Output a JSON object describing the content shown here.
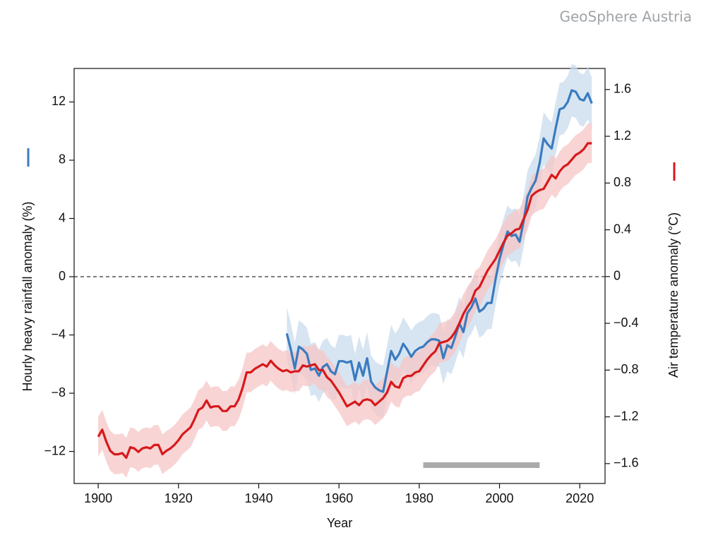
{
  "chart_data": {
    "type": "line",
    "source": "GeoSphere Austria",
    "xlabel": "Year",
    "ylabel": "Hourly heavy rainfall anomaly (%)",
    "y2label": "Air temperature anomaly (°C)",
    "x": [
      1900,
      1901,
      1902,
      1903,
      1904,
      1905,
      1906,
      1907,
      1908,
      1909,
      1910,
      1911,
      1912,
      1913,
      1914,
      1915,
      1916,
      1917,
      1918,
      1919,
      1920,
      1921,
      1922,
      1923,
      1924,
      1925,
      1926,
      1927,
      1928,
      1929,
      1930,
      1931,
      1932,
      1933,
      1934,
      1935,
      1936,
      1937,
      1938,
      1939,
      1940,
      1941,
      1942,
      1943,
      1944,
      1945,
      1946,
      1947,
      1948,
      1949,
      1950,
      1951,
      1952,
      1953,
      1954,
      1955,
      1956,
      1957,
      1958,
      1959,
      1960,
      1961,
      1962,
      1963,
      1964,
      1965,
      1966,
      1967,
      1968,
      1969,
      1970,
      1971,
      1972,
      1973,
      1974,
      1975,
      1976,
      1977,
      1978,
      1979,
      1980,
      1981,
      1982,
      1983,
      1984,
      1985,
      1986,
      1987,
      1988,
      1989,
      1990,
      1991,
      1992,
      1993,
      1994,
      1995,
      1996,
      1997,
      1998,
      1999,
      2000,
      2001,
      2002,
      2003,
      2004,
      2005,
      2006,
      2007,
      2008,
      2009,
      2010,
      2011,
      2012,
      2013,
      2014,
      2015,
      2016,
      2017,
      2018,
      2019,
      2020,
      2021,
      2022,
      2023
    ],
    "series": [
      {
        "name": "Hourly heavy rainfall anomaly",
        "color": "#3a7bbf",
        "band_color": "#c9dcee",
        "band": 1.8,
        "values": [
          null,
          null,
          null,
          null,
          null,
          null,
          null,
          null,
          null,
          null,
          null,
          null,
          null,
          null,
          null,
          null,
          null,
          null,
          null,
          null,
          null,
          null,
          null,
          null,
          null,
          null,
          null,
          null,
          null,
          null,
          null,
          null,
          null,
          null,
          null,
          null,
          null,
          null,
          null,
          null,
          null,
          null,
          null,
          null,
          null,
          null,
          null,
          -3.9,
          -5.0,
          -6.3,
          -4.8,
          -5.0,
          -5.3,
          -6.4,
          -6.3,
          -6.8,
          -6.2,
          -6.0,
          -6.5,
          -6.7,
          -5.8,
          -5.8,
          -5.9,
          -5.8,
          -7.1,
          -5.9,
          -6.8,
          -5.6,
          -7.2,
          -7.6,
          -7.8,
          -7.9,
          -6.5,
          -5.1,
          -5.7,
          -5.3,
          -4.6,
          -5.0,
          -5.5,
          -5.1,
          -4.9,
          -4.8,
          -4.5,
          -4.3,
          -4.3,
          -4.4,
          -5.6,
          -4.7,
          -4.9,
          -4.1,
          -3.2,
          -3.8,
          -2.5,
          -2.1,
          -1.5,
          -2.4,
          -2.2,
          -1.8,
          -1.8,
          -0.2,
          1.2,
          2.2,
          3.1,
          2.8,
          2.9,
          2.4,
          3.8,
          5.5,
          6.1,
          6.6,
          7.8,
          9.5,
          9.1,
          8.8,
          10.2,
          11.5,
          11.6,
          12.0,
          12.8,
          12.7,
          12.2,
          12.1,
          12.6,
          11.9
        ]
      },
      {
        "name": "Air temperature anomaly",
        "color": "#d7191c",
        "band_color": "#f6c6c6",
        "band": 0.17,
        "axis": "y2",
        "values": [
          -1.37,
          -1.31,
          -1.41,
          -1.49,
          -1.52,
          -1.52,
          -1.51,
          -1.55,
          -1.46,
          -1.47,
          -1.5,
          -1.47,
          -1.46,
          -1.47,
          -1.44,
          -1.44,
          -1.52,
          -1.49,
          -1.47,
          -1.44,
          -1.4,
          -1.35,
          -1.32,
          -1.29,
          -1.22,
          -1.14,
          -1.12,
          -1.06,
          -1.12,
          -1.11,
          -1.11,
          -1.15,
          -1.15,
          -1.11,
          -1.11,
          -1.05,
          -0.95,
          -0.82,
          -0.82,
          -0.79,
          -0.77,
          -0.75,
          -0.77,
          -0.72,
          -0.76,
          -0.79,
          -0.81,
          -0.8,
          -0.82,
          -0.81,
          -0.81,
          -0.76,
          -0.77,
          -0.76,
          -0.75,
          -0.8,
          -0.8,
          -0.86,
          -0.89,
          -0.94,
          -0.99,
          -1.05,
          -1.11,
          -1.09,
          -1.07,
          -1.1,
          -1.06,
          -1.05,
          -1.06,
          -1.1,
          -1.07,
          -1.04,
          -0.99,
          -0.9,
          -0.94,
          -0.95,
          -0.87,
          -0.85,
          -0.85,
          -0.82,
          -0.81,
          -0.76,
          -0.71,
          -0.67,
          -0.64,
          -0.57,
          -0.56,
          -0.55,
          -0.52,
          -0.47,
          -0.4,
          -0.32,
          -0.26,
          -0.21,
          -0.12,
          -0.09,
          -0.02,
          0.05,
          0.1,
          0.15,
          0.22,
          0.29,
          0.35,
          0.37,
          0.4,
          0.41,
          0.49,
          0.57,
          0.69,
          0.72,
          0.74,
          0.75,
          0.81,
          0.87,
          0.84,
          0.9,
          0.94,
          0.96,
          1.0,
          1.04,
          1.06,
          1.09,
          1.14,
          1.14
        ]
      }
    ],
    "reference_period": [
      1981,
      2010
    ],
    "reference_color": "#aaaaaa",
    "xlim": [
      1894,
      2026.3
    ],
    "xticks": [
      1900,
      1920,
      1940,
      1960,
      1980,
      2000,
      2020
    ],
    "ylim": [
      -14.2,
      14.3
    ],
    "yticks": [
      {
        "value": -12,
        "label": "−12"
      },
      {
        "value": -8,
        "label": "−8"
      },
      {
        "value": -4,
        "label": "−4"
      },
      0,
      4,
      8,
      12
    ],
    "y2lim": [
      -1.77,
      1.78
    ],
    "y2ticks": [
      {
        "value": -1.6,
        "label": "−1.6"
      },
      {
        "value": -1.2,
        "label": "−1.2"
      },
      {
        "value": -0.8,
        "label": "−0.8"
      },
      {
        "value": -0.4,
        "label": "−0.4"
      },
      0,
      0.4,
      0.8,
      1.2,
      1.6
    ],
    "zero_line": true
  }
}
